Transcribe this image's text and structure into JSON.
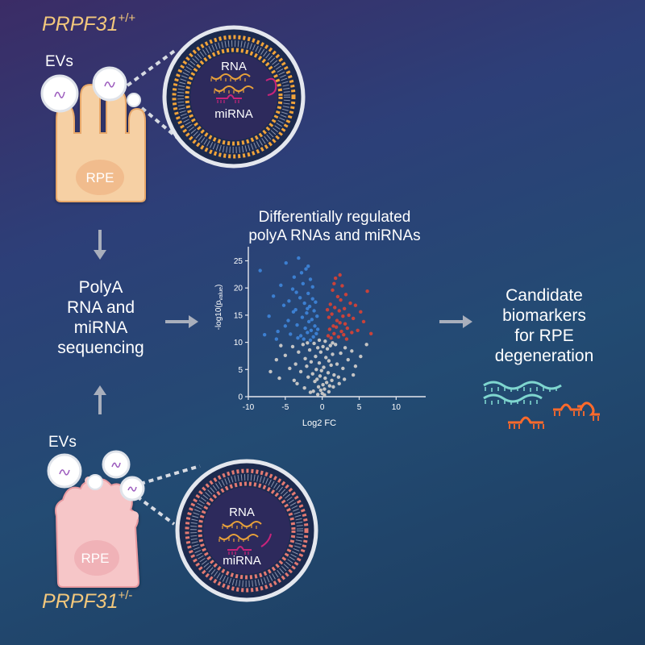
{
  "top_panel": {
    "genotype_gene": "PRPF31",
    "genotype_sup": "+/+",
    "evs_label": "EVs",
    "cell_label": "RPE",
    "rna_label": "RNA",
    "mirna_label": "miRNA"
  },
  "bottom_panel": {
    "genotype_gene": "PRPF31",
    "genotype_sup": "+/-",
    "evs_label": "EVs",
    "cell_label": "RPE",
    "rna_label": "RNA",
    "mirna_label": "miRNA"
  },
  "sequencing_label": [
    "PolyA",
    "RNA and",
    "miRNA",
    "sequencing"
  ],
  "plot_title": [
    "Differentially regulated",
    "polyA RNAs and miRNAs"
  ],
  "candidate_label": [
    "Candidate",
    "biomarkers",
    "for RPE",
    "degeneration"
  ],
  "colors": {
    "down": "#3c7fd1",
    "up": "#c9423a",
    "ns": "#c4c4c4",
    "genotype": "#f2c77c",
    "wt_cell": "#f6d0a4",
    "het_cell": "#f6c6c8",
    "wt_membrane": "#f0a33a",
    "het_membrane": "#e37a72",
    "rna_wt": "#e8a13a",
    "mirna": "#c8247a",
    "rna_candidate": "#7fd6cf",
    "mirna_candidate": "#ff6a2b"
  },
  "chart_data": {
    "type": "scatter",
    "xlabel": "Log2 FC",
    "ylabel": "-log10(p",
    "ylabel_sub": "value",
    "ylabel_end": ")",
    "xlim": [
      -10,
      14
    ],
    "ylim": [
      0,
      27
    ],
    "xticks": [
      -10,
      -5,
      0,
      5,
      10
    ],
    "yticks": [
      0,
      5,
      10,
      15,
      20,
      25
    ],
    "series": [
      {
        "name": "down",
        "color": "#3c7fd1",
        "points": [
          [
            -8.4,
            23.2
          ],
          [
            -7.2,
            14.8
          ],
          [
            -6.6,
            18.5
          ],
          [
            -6.0,
            12.0
          ],
          [
            -5.6,
            20.5
          ],
          [
            -5.2,
            16.8
          ],
          [
            -4.9,
            24.6
          ],
          [
            -4.6,
            14.0
          ],
          [
            -4.3,
            11.5
          ],
          [
            -4.0,
            19.8
          ],
          [
            -3.8,
            22.0
          ],
          [
            -3.6,
            16.0
          ],
          [
            -3.4,
            13.2
          ],
          [
            -3.2,
            25.5
          ],
          [
            -3.0,
            18.2
          ],
          [
            -2.9,
            11.2
          ],
          [
            -2.7,
            14.6
          ],
          [
            -2.6,
            20.8
          ],
          [
            -2.4,
            17.2
          ],
          [
            -2.3,
            12.6
          ],
          [
            -2.2,
            23.5
          ],
          [
            -2.1,
            15.4
          ],
          [
            -2.0,
            11.8
          ],
          [
            -1.9,
            19.0
          ],
          [
            -1.8,
            13.8
          ],
          [
            -1.7,
            16.6
          ],
          [
            -1.6,
            21.6
          ],
          [
            -1.5,
            12.2
          ],
          [
            -1.4,
            14.2
          ],
          [
            -1.3,
            18.0
          ],
          [
            -1.2,
            11.0
          ],
          [
            -1.1,
            15.8
          ],
          [
            -1.0,
            13.0
          ],
          [
            -0.9,
            17.4
          ],
          [
            -0.8,
            11.6
          ],
          [
            -0.7,
            14.8
          ],
          [
            -0.6,
            12.4
          ],
          [
            -2.5,
            10.6
          ],
          [
            -3.3,
            10.8
          ],
          [
            -1.6,
            10.4
          ],
          [
            -4.5,
            17.6
          ],
          [
            -5.0,
            13.0
          ],
          [
            -3.9,
            15.6
          ],
          [
            -2.8,
            22.8
          ],
          [
            -1.9,
            24.0
          ],
          [
            -6.2,
            10.6
          ],
          [
            -7.8,
            11.4
          ],
          [
            -3.5,
            19.2
          ],
          [
            -2.0,
            16.2
          ],
          [
            -1.3,
            20.2
          ]
        ]
      },
      {
        "name": "up",
        "color": "#c9423a",
        "points": [
          [
            0.8,
            11.2
          ],
          [
            0.9,
            14.6
          ],
          [
            1.0,
            12.4
          ],
          [
            1.1,
            17.0
          ],
          [
            1.2,
            10.8
          ],
          [
            1.3,
            15.2
          ],
          [
            1.4,
            19.6
          ],
          [
            1.5,
            13.0
          ],
          [
            1.6,
            11.6
          ],
          [
            1.7,
            16.4
          ],
          [
            1.8,
            21.8
          ],
          [
            1.9,
            12.8
          ],
          [
            2.0,
            14.0
          ],
          [
            2.1,
            18.4
          ],
          [
            2.2,
            11.0
          ],
          [
            2.3,
            15.8
          ],
          [
            2.4,
            13.6
          ],
          [
            2.5,
            17.8
          ],
          [
            2.6,
            12.0
          ],
          [
            2.7,
            20.4
          ],
          [
            2.8,
            14.8
          ],
          [
            2.9,
            11.4
          ],
          [
            3.0,
            16.2
          ],
          [
            3.1,
            13.4
          ],
          [
            3.2,
            18.8
          ],
          [
            3.4,
            12.6
          ],
          [
            3.6,
            15.0
          ],
          [
            3.8,
            17.2
          ],
          [
            4.0,
            11.8
          ],
          [
            4.2,
            14.4
          ],
          [
            4.5,
            16.8
          ],
          [
            4.8,
            12.2
          ],
          [
            5.2,
            15.6
          ],
          [
            5.6,
            13.8
          ],
          [
            6.1,
            19.4
          ],
          [
            6.6,
            11.6
          ],
          [
            1.6,
            20.8
          ],
          [
            2.4,
            22.4
          ],
          [
            3.3,
            10.6
          ],
          [
            0.7,
            16.0
          ]
        ]
      },
      {
        "name": "ns",
        "color": "#c4c4c4",
        "points": [
          [
            -6.2,
            6.8
          ],
          [
            -5.0,
            7.6
          ],
          [
            -4.4,
            5.2
          ],
          [
            -4.0,
            9.2
          ],
          [
            -3.6,
            6.0
          ],
          [
            -3.2,
            8.2
          ],
          [
            -2.9,
            4.6
          ],
          [
            -2.6,
            9.6
          ],
          [
            -2.3,
            7.0
          ],
          [
            -2.1,
            5.6
          ],
          [
            -1.9,
            3.6
          ],
          [
            -1.7,
            8.6
          ],
          [
            -1.5,
            6.4
          ],
          [
            -1.3,
            4.2
          ],
          [
            -1.1,
            9.8
          ],
          [
            -1.0,
            2.8
          ],
          [
            -0.9,
            7.4
          ],
          [
            -0.8,
            5.0
          ],
          [
            -0.7,
            3.2
          ],
          [
            -0.6,
            9.0
          ],
          [
            -0.5,
            1.8
          ],
          [
            -0.4,
            6.2
          ],
          [
            -0.3,
            3.8
          ],
          [
            -0.2,
            1.2
          ],
          [
            -0.1,
            4.8
          ],
          [
            0.0,
            0.6
          ],
          [
            0.1,
            2.2
          ],
          [
            0.2,
            5.4
          ],
          [
            0.3,
            1.4
          ],
          [
            0.4,
            3.4
          ],
          [
            0.5,
            7.2
          ],
          [
            0.6,
            2.6
          ],
          [
            0.7,
            8.8
          ],
          [
            0.8,
            4.4
          ],
          [
            0.9,
            6.6
          ],
          [
            1.0,
            2.0
          ],
          [
            1.1,
            9.4
          ],
          [
            1.2,
            5.8
          ],
          [
            1.3,
            3.0
          ],
          [
            1.4,
            7.8
          ],
          [
            1.6,
            4.0
          ],
          [
            1.8,
            9.6
          ],
          [
            2.0,
            6.0
          ],
          [
            2.2,
            3.6
          ],
          [
            2.5,
            8.0
          ],
          [
            2.8,
            5.2
          ],
          [
            3.1,
            9.0
          ],
          [
            3.5,
            6.8
          ],
          [
            4.0,
            8.4
          ],
          [
            4.5,
            5.6
          ],
          [
            5.2,
            7.4
          ],
          [
            -7.0,
            4.6
          ],
          [
            -5.6,
            9.4
          ],
          [
            -3.4,
            2.4
          ],
          [
            -2.4,
            1.6
          ],
          [
            -1.6,
            0.8
          ],
          [
            -1.2,
            1.0
          ],
          [
            -0.6,
            0.4
          ],
          [
            0.3,
            0.3
          ],
          [
            0.9,
            0.9
          ],
          [
            1.5,
            1.8
          ],
          [
            2.3,
            2.4
          ],
          [
            3.0,
            3.2
          ],
          [
            -2.0,
            9.9
          ],
          [
            1.4,
            9.9
          ],
          [
            -0.2,
            8.2
          ],
          [
            0.1,
            9.2
          ],
          [
            -3.8,
            3.0
          ],
          [
            4.2,
            4.0
          ],
          [
            -0.4,
            10.4
          ],
          [
            0.4,
            10.2
          ],
          [
            6.0,
            9.6
          ],
          [
            -5.8,
            3.4
          ]
        ]
      }
    ]
  }
}
